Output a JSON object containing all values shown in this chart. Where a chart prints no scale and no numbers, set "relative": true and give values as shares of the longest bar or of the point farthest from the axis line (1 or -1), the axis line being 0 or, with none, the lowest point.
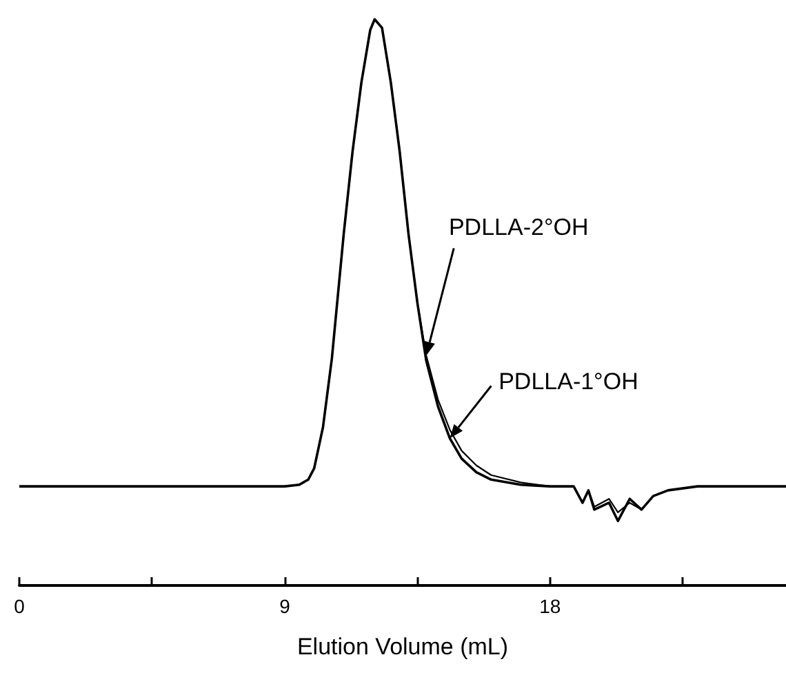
{
  "chart_data": {
    "type": "line",
    "relative": true,
    "xlabel": "Elution Volume (mL)",
    "xlim": [
      0,
      26
    ],
    "xticks": [
      0,
      {
        "value": 4.5,
        "label": null
      },
      9,
      {
        "value": 13.5,
        "label": null
      },
      18,
      {
        "value": 22.5,
        "label": null
      }
    ],
    "grid": false,
    "legend": false,
    "marker": "none",
    "line_style": "solid",
    "series": [
      {
        "name": "PDLLA-1°OH",
        "color": "#000000",
        "x": [
          0,
          8,
          9,
          9.5,
          9.8,
          10,
          10.3,
          10.6,
          11,
          11.3,
          11.6,
          11.9,
          12.05,
          12.3,
          12.6,
          12.9,
          13.2,
          13.5,
          13.8,
          14.2,
          14.6,
          15,
          15.5,
          16,
          17,
          18,
          18.8,
          19.1,
          19.3,
          19.5,
          20,
          20.3,
          20.7,
          21.1,
          21.5,
          22,
          23,
          26
        ],
        "values": [
          0.175,
          0.175,
          0.175,
          0.178,
          0.187,
          0.207,
          0.28,
          0.401,
          0.62,
          0.766,
          0.888,
          0.981,
          1,
          0.985,
          0.888,
          0.766,
          0.62,
          0.499,
          0.397,
          0.316,
          0.26,
          0.224,
          0.2,
          0.187,
          0.178,
          0.175,
          0.175,
          0.146,
          0.168,
          0.134,
          0.146,
          0.114,
          0.153,
          0.134,
          0.158,
          0.168,
          0.175,
          0.175
        ]
      },
      {
        "name": "PDLLA-2°OH",
        "color": "#000000",
        "x": [
          0,
          8,
          9,
          9.5,
          9.8,
          10,
          10.3,
          10.6,
          11,
          11.3,
          11.6,
          11.9,
          12.05,
          12.3,
          12.6,
          12.9,
          13.2,
          13.5,
          13.8,
          14.2,
          14.6,
          15,
          15.5,
          16,
          17,
          18,
          18.8,
          19.1,
          19.3,
          19.5,
          20,
          20.3,
          20.7,
          21.1,
          21.5,
          22,
          23,
          26
        ],
        "values": [
          0.175,
          0.175,
          0.175,
          0.178,
          0.187,
          0.207,
          0.28,
          0.401,
          0.62,
          0.766,
          0.888,
          0.981,
          1,
          0.985,
          0.888,
          0.766,
          0.62,
          0.499,
          0.406,
          0.328,
          0.275,
          0.238,
          0.212,
          0.195,
          0.182,
          0.175,
          0.175,
          0.146,
          0.168,
          0.139,
          0.153,
          0.129,
          0.146,
          0.134,
          0.158,
          0.168,
          0.175,
          0.175
        ]
      }
    ]
  }
}
